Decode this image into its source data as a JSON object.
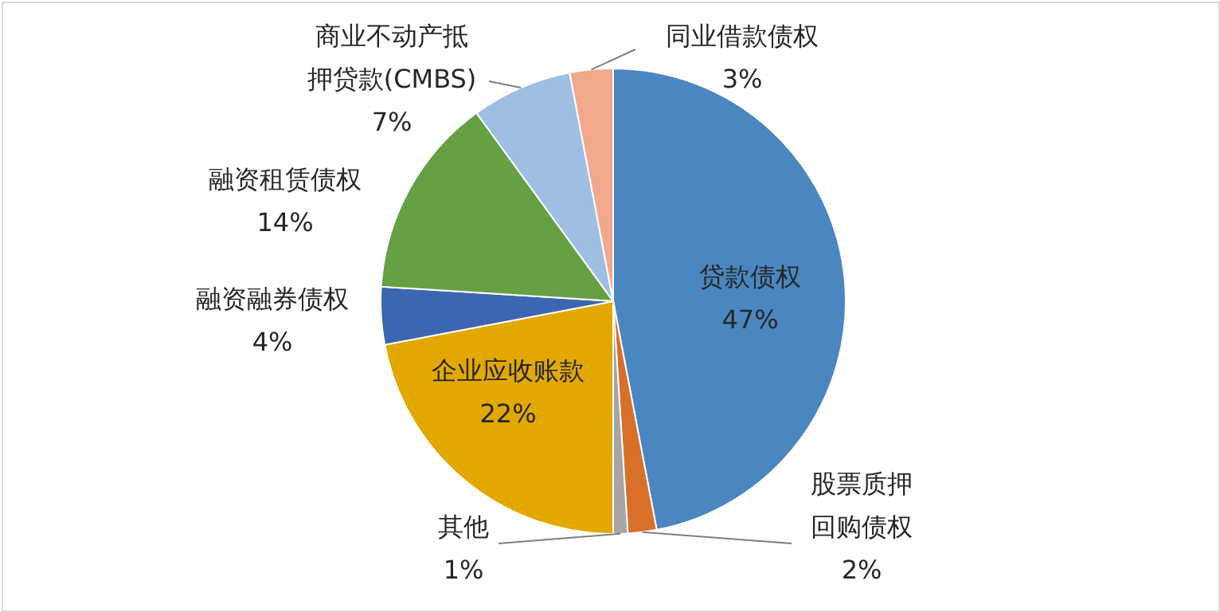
{
  "chart_data": {
    "type": "pie",
    "categories": [
      "贷款债权",
      "股票质押回购债权",
      "其他",
      "企业应收账款",
      "融资融券债权",
      "融资租赁债权",
      "商业不动产抵押贷款(CMBS)",
      "同业借款债权"
    ],
    "values": [
      47,
      2,
      1,
      22,
      4,
      14,
      7,
      3
    ],
    "value_labels": [
      "47%",
      "2%",
      "1%",
      "22%",
      "4%",
      "14%",
      "7%",
      "3%"
    ],
    "colors": [
      "#4a86c0",
      "#d9702a",
      "#a5a5a5",
      "#e3a800",
      "#3d66b0",
      "#65a042",
      "#9ebee3",
      "#f2a88a"
    ]
  }
}
